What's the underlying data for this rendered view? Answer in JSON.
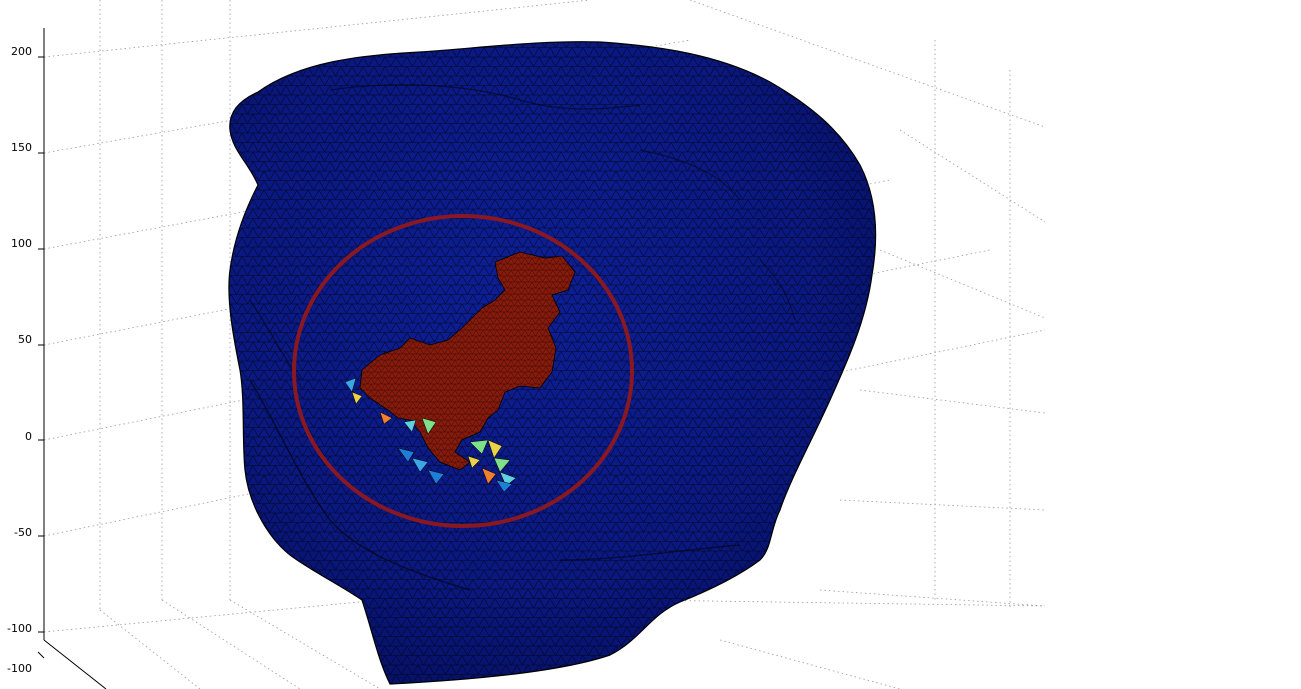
{
  "plot": {
    "z_axis": {
      "ticks": [
        "200",
        "150",
        "100",
        "50",
        "0",
        "-50",
        "-100"
      ]
    },
    "y_axis": {
      "ticks": [
        "-100"
      ]
    },
    "surface": {
      "base_color": "#0b1a86",
      "mesh_color": "#000000",
      "activation_color": "#861a0b",
      "patch_colors": [
        "#3aa6e8",
        "#7fe08a",
        "#e8d24a",
        "#f08030",
        "#5fd0e0",
        "#1e7fd8"
      ]
    },
    "highlight_circle": {
      "color": "#8a1820"
    }
  }
}
